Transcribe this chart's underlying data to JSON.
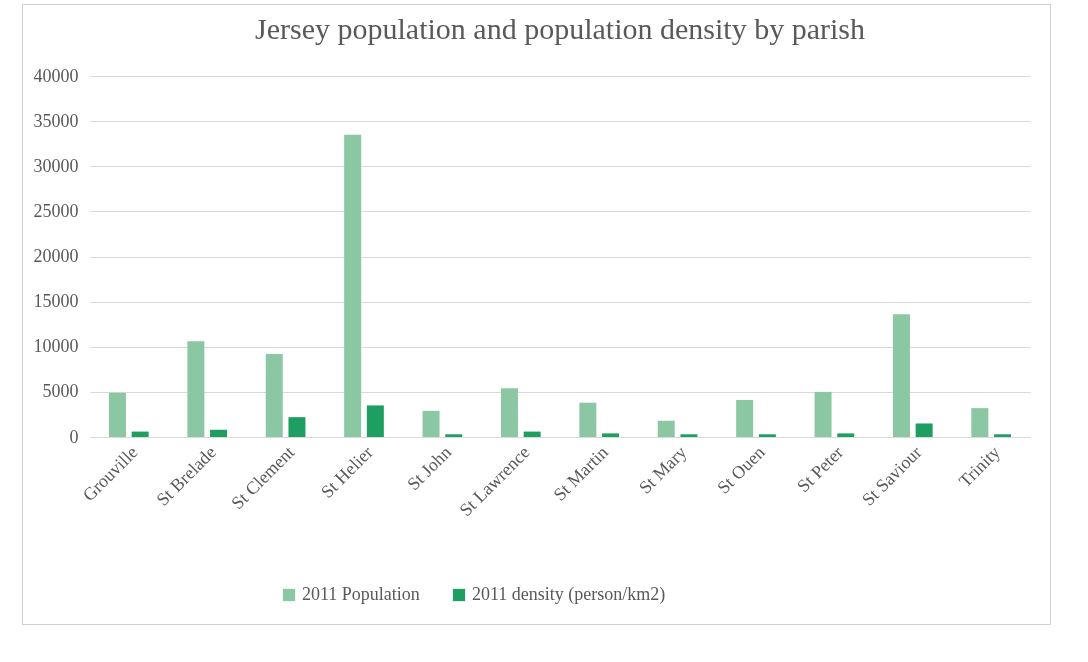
{
  "chart_data": {
    "type": "bar",
    "title": "Jersey population and population density by parish",
    "categories": [
      "Grouville",
      "St Brelade",
      "St Clement",
      "St Helier",
      "St John",
      "St Lawrence",
      "St Martin",
      "St Mary",
      "St Ouen",
      "St Peter",
      "St Saviour",
      "Trinity"
    ],
    "series": [
      {
        "name": "2011 Population",
        "color": "#8cc7a3",
        "values": [
          4900,
          10600,
          9200,
          33500,
          2900,
          5400,
          3800,
          1800,
          4100,
          5000,
          13600,
          3200
        ]
      },
      {
        "name": "2011 density (person/km2)",
        "color": "#1f9e62",
        "values": [
          600,
          800,
          2200,
          3500,
          300,
          600,
          400,
          300,
          300,
          400,
          1500,
          300
        ]
      }
    ],
    "ylim": [
      0,
      40000
    ],
    "yticks": [
      0,
      5000,
      10000,
      15000,
      20000,
      25000,
      30000,
      35000,
      40000
    ],
    "grid": "y",
    "legend": "bottom"
  }
}
